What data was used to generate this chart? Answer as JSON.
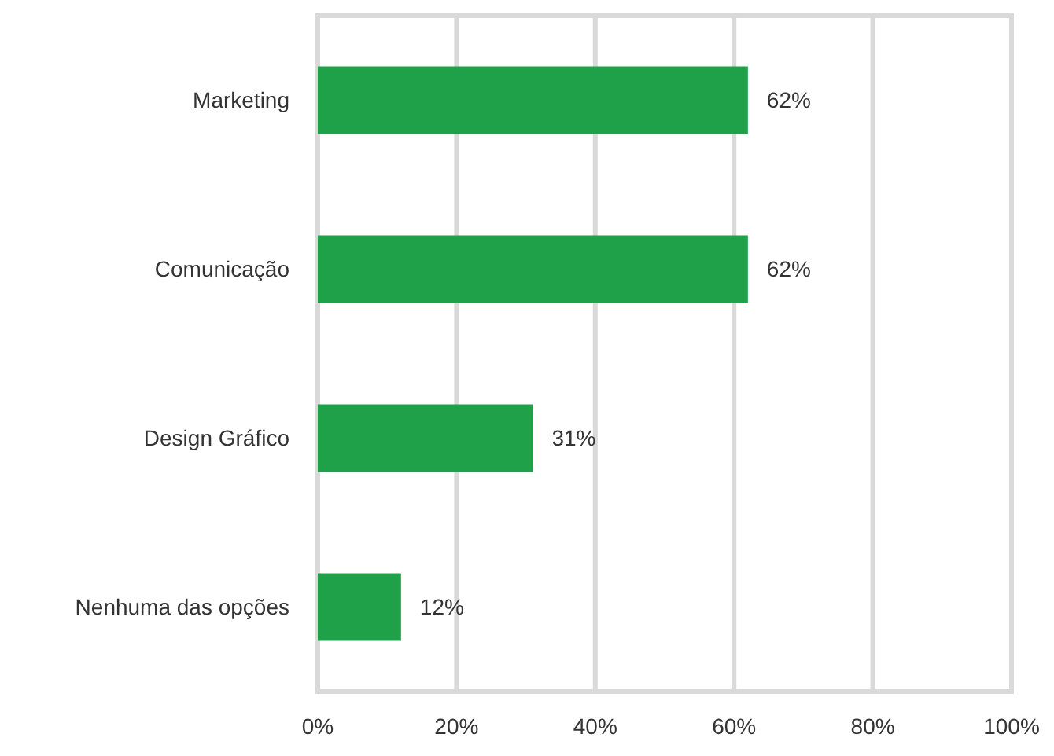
{
  "chart_data": {
    "type": "bar",
    "orientation": "horizontal",
    "categories": [
      "Marketing",
      "Comunicação",
      "Design Gráfico",
      "Nenhuma das opções"
    ],
    "values": [
      62,
      62,
      31,
      12
    ],
    "color": "#1fa14a",
    "value_labels": [
      "62%",
      "62%",
      "31%",
      "12%"
    ],
    "xlim": [
      0,
      100
    ],
    "xticks": [
      {
        "value": 0,
        "label": "0%"
      },
      {
        "value": 20,
        "label": "20%"
      },
      {
        "value": 40,
        "label": "40%"
      },
      {
        "value": 60,
        "label": "60%"
      },
      {
        "value": 80,
        "label": "80%"
      },
      {
        "value": 100,
        "label": "100%"
      }
    ],
    "grid": "x"
  }
}
